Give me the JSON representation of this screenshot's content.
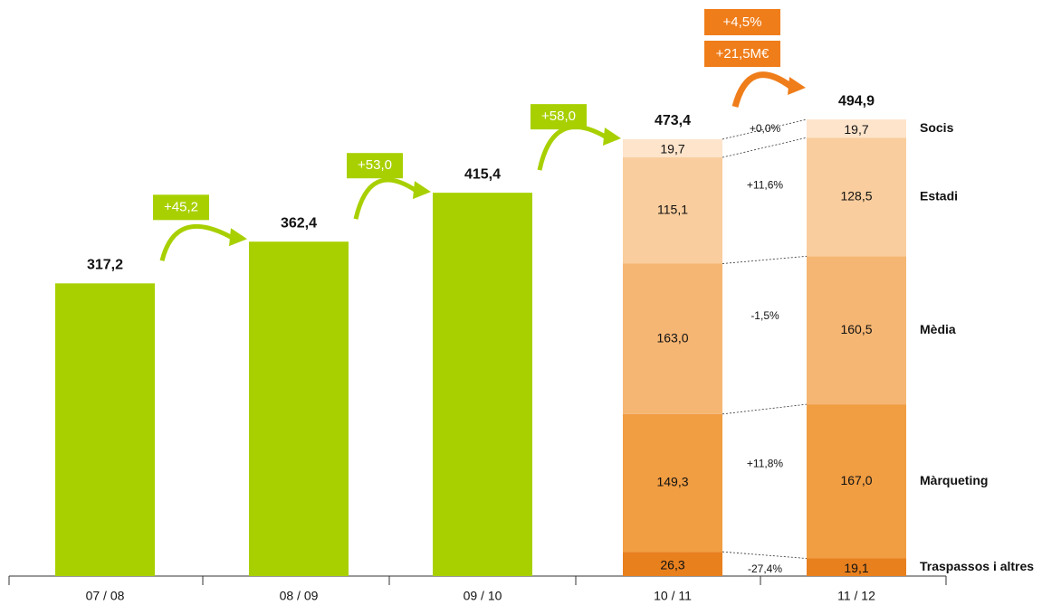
{
  "chart_data": {
    "type": "bar",
    "categories": [
      "07 / 08",
      "08 / 09",
      "09 / 10",
      "10 / 11",
      "11 / 12"
    ],
    "totals": [
      317.2,
      362.4,
      415.4,
      473.4,
      494.9
    ],
    "total_labels": [
      "317,2",
      "362,4",
      "415,4",
      "473,4",
      "494,9"
    ],
    "growth": [
      "+45,2",
      "+53,0",
      "+58,0"
    ],
    "total_growth": [
      "+4,5%",
      "+21,5M€"
    ],
    "series": [
      {
        "color": "#a8d000",
        "values": [
          317.2,
          362.4,
          415.4,
          null,
          null
        ]
      },
      {
        "name": "Traspassos i altres",
        "color": "#e8801e",
        "values": [
          null,
          null,
          null,
          26.3,
          19.1
        ],
        "value_labels": [
          null,
          null,
          null,
          "26,3",
          "19,1"
        ],
        "change": "-27,4%"
      },
      {
        "name": "Màrqueting",
        "color": "#f19d42",
        "values": [
          null,
          null,
          null,
          149.3,
          167.0
        ],
        "value_labels": [
          null,
          null,
          null,
          "149,3",
          "167,0"
        ],
        "change": "+11,8%"
      },
      {
        "name": "Mèdia",
        "color": "#f6b673",
        "values": [
          null,
          null,
          null,
          163.0,
          160.5
        ],
        "value_labels": [
          null,
          null,
          null,
          "163,0",
          "160,5"
        ],
        "change": "-1,5%"
      },
      {
        "name": "Estadi",
        "color": "#f9cd9d",
        "values": [
          null,
          null,
          null,
          115.1,
          128.5
        ],
        "value_labels": [
          null,
          null,
          null,
          "115,1",
          "128,5"
        ],
        "change": "+11,6%"
      },
      {
        "name": "Socis",
        "color": "#fde4cb",
        "values": [
          null,
          null,
          null,
          19.7,
          19.7
        ],
        "value_labels": [
          null,
          null,
          null,
          "19,7",
          "19,7"
        ],
        "change": "+0,0%"
      }
    ]
  }
}
